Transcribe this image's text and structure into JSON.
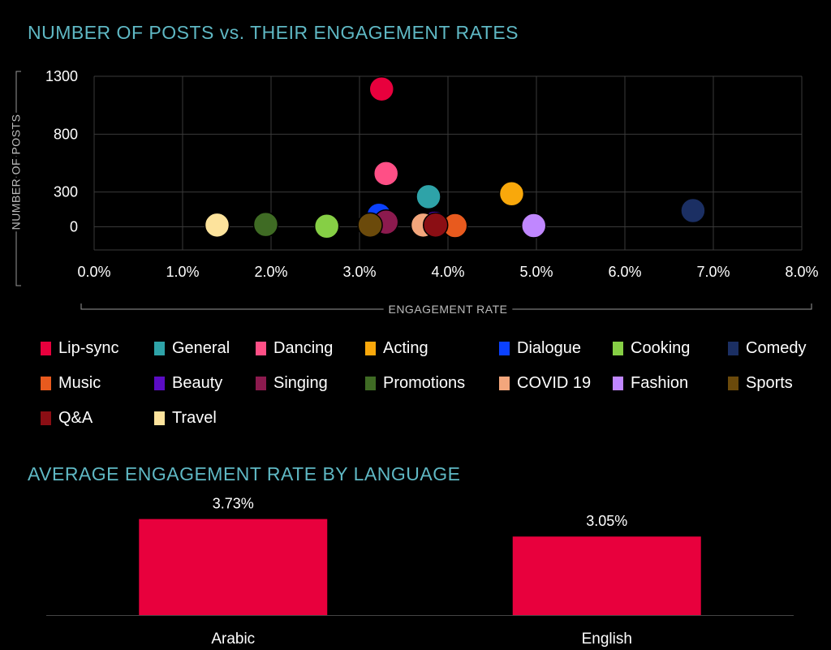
{
  "scatter_title": "NUMBER OF POSTS vs. THEIR ENGAGEMENT RATES",
  "bar_title": "AVERAGE ENGAGEMENT RATE BY LANGUAGE",
  "chart_data": [
    {
      "type": "scatter",
      "title": "NUMBER OF POSTS vs. THEIR ENGAGEMENT RATES",
      "xlabel": "ENGAGEMENT RATE",
      "ylabel": "NUMBER OF POSTS",
      "xlim": [
        0,
        8
      ],
      "ylim": [
        -200,
        1300
      ],
      "xticks": [
        "0.0%",
        "1.0%",
        "2.0%",
        "3.0%",
        "4.0%",
        "5.0%",
        "6.0%",
        "7.0%",
        "8.0%"
      ],
      "yticks": [
        "1300",
        "800",
        "300",
        "0"
      ],
      "ytick_values": [
        1300,
        800,
        300,
        0
      ],
      "grid": true,
      "series": [
        {
          "name": "Lip-sync",
          "color": "#e8003d",
          "x": 3.25,
          "y": 1190
        },
        {
          "name": "General",
          "color": "#2ea3a8",
          "x": 3.78,
          "y": 260
        },
        {
          "name": "Dancing",
          "color": "#ff4f86",
          "x": 3.3,
          "y": 460
        },
        {
          "name": "Acting",
          "color": "#f9a80b",
          "x": 4.72,
          "y": 285
        },
        {
          "name": "Dialogue",
          "color": "#0b41ff",
          "x": 3.22,
          "y": 100
        },
        {
          "name": "Cooking",
          "color": "#86cf45",
          "x": 2.63,
          "y": 5
        },
        {
          "name": "Comedy",
          "color": "#1b2f63",
          "x": 6.77,
          "y": 140
        },
        {
          "name": "Music",
          "color": "#e85a1e",
          "x": 4.08,
          "y": 10
        },
        {
          "name": "Beauty",
          "color": "#5b0cc4",
          "x": 3.85,
          "y": 30
        },
        {
          "name": "Singing",
          "color": "#8c1a4e",
          "x": 3.3,
          "y": 40
        },
        {
          "name": "Promotions",
          "color": "#3f6b24",
          "x": 1.94,
          "y": 20
        },
        {
          "name": "COVID 19",
          "color": "#f3a67c",
          "x": 3.72,
          "y": 15
        },
        {
          "name": "Fashion",
          "color": "#c087ff",
          "x": 4.97,
          "y": 10
        },
        {
          "name": "Sports",
          "color": "#6b4a0b",
          "x": 3.12,
          "y": 15
        },
        {
          "name": "Q&A",
          "color": "#8b0e14",
          "x": 3.86,
          "y": 15
        },
        {
          "name": "Travel",
          "color": "#fde39c",
          "x": 1.39,
          "y": 15
        }
      ]
    },
    {
      "type": "bar",
      "title": "AVERAGE ENGAGEMENT RATE BY LANGUAGE",
      "categories": [
        "Arabic",
        "English"
      ],
      "values": [
        3.73,
        3.05
      ],
      "value_labels": [
        "3.73%",
        "3.05%"
      ],
      "color": "#e8003d",
      "ylim": [
        0,
        4.6
      ]
    }
  ]
}
